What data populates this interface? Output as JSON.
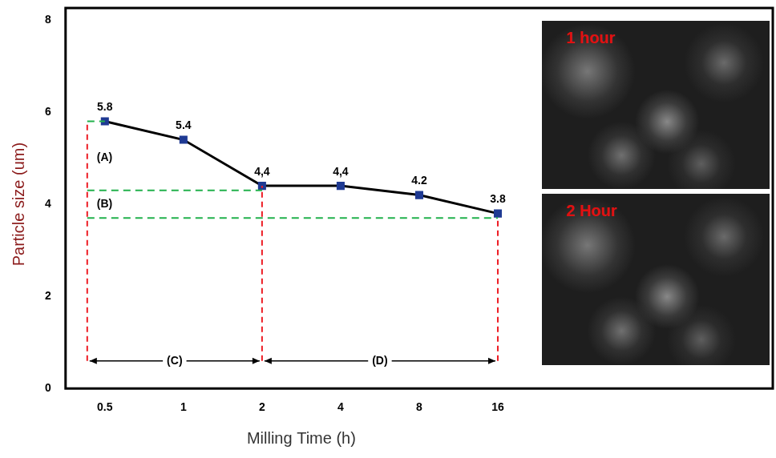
{
  "chart_data": {
    "type": "line",
    "x_label": "Milling Time (h)",
    "y_label": "Particle size (um)",
    "categories": [
      "0.5",
      "1",
      "2",
      "4",
      "8",
      "16"
    ],
    "values": [
      5.8,
      5.4,
      4.4,
      4.4,
      4.2,
      3.8
    ],
    "value_labels": [
      "5.8",
      "5.4",
      "4,4",
      "4,4",
      "4.2",
      "3.8"
    ],
    "data_labels": true,
    "color": "#000000",
    "marker": "square",
    "ylim": [
      0,
      8
    ],
    "yticks": [
      0,
      2,
      4,
      6,
      8
    ],
    "grid": false,
    "guide_lines": [
      {
        "y": 5.8,
        "to": "0.5",
        "color": "#22b14c"
      },
      {
        "y": 4.3,
        "to": "2",
        "color": "#22b14c"
      },
      {
        "y": 3.7,
        "to": "16",
        "color": "#22b14c"
      }
    ],
    "range_marks": [
      {
        "at": "0.5",
        "from": 0.6,
        "to": 5.8,
        "color": "#ed1c24"
      },
      {
        "at": "2",
        "from": 0.6,
        "to": 4.4,
        "color": "#ed1c24"
      },
      {
        "at": "16",
        "from": 0.6,
        "to": 3.7,
        "color": "#ed1c24"
      }
    ],
    "spans": [
      {
        "text": "(C)",
        "from": "0.5",
        "to": "2",
        "y": 0.6
      },
      {
        "text": "(D)",
        "from": "2",
        "to": "16",
        "y": 0.6
      }
    ],
    "annotations": [
      {
        "text": "(A)",
        "category": "0.5",
        "y": 5.0
      },
      {
        "text": "(B)",
        "category": "0.5",
        "y": 4.0
      }
    ]
  },
  "insets": [
    {
      "title": "1 hour"
    },
    {
      "title": "2 Hour"
    }
  ]
}
